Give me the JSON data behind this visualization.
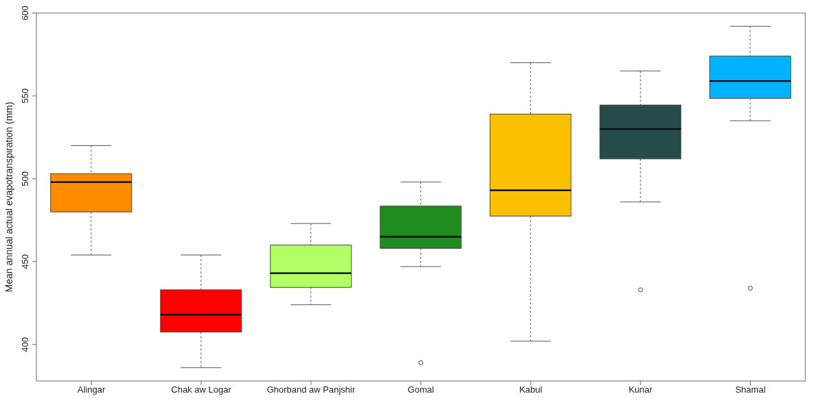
{
  "chart_data": {
    "type": "box",
    "ylabel": "Mean annual actual evapotranspiration (mm)",
    "categories": [
      "Alingar",
      "Chak aw Logar",
      "Ghorband aw Panjshir",
      "Gomal",
      "Kabul",
      "Kunar",
      "Shamal"
    ],
    "colors": [
      "#ff8c00",
      "#ff0000",
      "#b3ff66",
      "#1e8c1e",
      "#fbc100",
      "#264b4b",
      "#00b2ff"
    ],
    "boxes": [
      {
        "low": 454,
        "q1": 480,
        "median": 498,
        "q3": 503,
        "high": 520
      },
      {
        "low": 386,
        "q1": 407.5,
        "median": 418,
        "q3": 433,
        "high": 454
      },
      {
        "low": 424,
        "q1": 434.5,
        "median": 443,
        "q3": 460,
        "high": 473
      },
      {
        "low": 447,
        "q1": 458,
        "median": 465,
        "q3": 483.5,
        "high": 498,
        "outliers": [
          389
        ]
      },
      {
        "low": 402,
        "q1": 477.5,
        "median": 493,
        "q3": 539,
        "high": 570
      },
      {
        "low": 486,
        "q1": 512,
        "median": 530,
        "q3": 544.5,
        "high": 565,
        "outliers": [
          433
        ]
      },
      {
        "low": 535,
        "q1": 548.5,
        "median": 559,
        "q3": 574,
        "high": 592,
        "outliers": [
          434
        ]
      }
    ],
    "ylim": [
      378,
      600
    ],
    "yticks": [
      400,
      450,
      500,
      550,
      600
    ],
    "grid": false
  }
}
